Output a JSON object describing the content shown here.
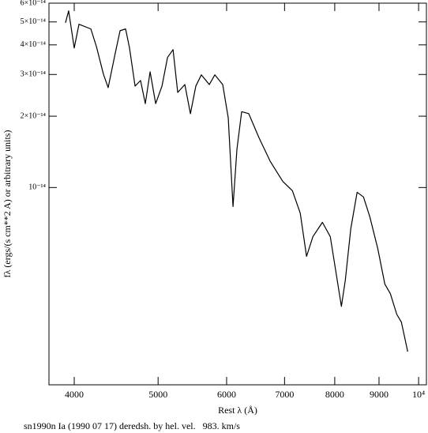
{
  "chart_data": {
    "type": "line",
    "title": "sn1990n Ia (1990 07 17) deredsh. by hel. vel.   983. km/s",
    "xlabel": "Rest λ (Å)",
    "ylabel": "fλ (ergs/(s cm**2 A) or arbitrary units)",
    "xscale": "log",
    "yscale": "log",
    "xlim": [
      3740,
      10210
    ],
    "ylim": [
      1.47e-15,
      6e-14
    ],
    "xticks": [
      4000,
      5000,
      6000,
      7000,
      8000,
      9000,
      {
        "value": 10000,
        "label": "10⁴"
      }
    ],
    "yticks": [
      {
        "value": 1e-14,
        "label": "10⁻¹⁴"
      },
      {
        "value": 2e-14,
        "label": "2×10⁻¹⁴"
      },
      {
        "value": 3e-14,
        "label": "3×10⁻¹⁴"
      },
      {
        "value": 4e-14,
        "label": "4×10⁻¹⁴"
      },
      {
        "value": 5e-14,
        "label": "5×10⁻¹⁴"
      },
      {
        "value": 6e-14,
        "label": "6×10⁻¹⁴"
      }
    ],
    "series": [
      {
        "color": "#000000",
        "x": [
          3908,
          3941,
          4000,
          4051,
          4181,
          4243,
          4323,
          4378,
          4462,
          4519,
          4586,
          4634,
          4703,
          4772,
          4833,
          4895,
          4968,
          5052,
          5127,
          5203,
          5268,
          5369,
          5449,
          5528,
          5610,
          5730,
          5815,
          5938,
          6026,
          6103,
          6167,
          6245,
          6364,
          6541,
          6738,
          6968,
          7147,
          7298,
          7422,
          7548,
          7742,
          7906,
          8040,
          8143,
          8228,
          8349,
          8491,
          8636,
          8783,
          8970,
          9141,
          9277,
          9434,
          9553,
          9714
        ],
        "values": [
          4.96e-14,
          5.57e-14,
          3.88e-14,
          4.89e-14,
          4.67e-14,
          3.94e-14,
          3.01e-14,
          2.64e-14,
          3.7e-14,
          4.59e-14,
          4.67e-14,
          3.88e-14,
          2.68e-14,
          2.83e-14,
          2.26e-14,
          3.08e-14,
          2.26e-14,
          2.68e-14,
          3.54e-14,
          3.82e-14,
          2.52e-14,
          2.72e-14,
          2.05e-14,
          2.68e-14,
          2.99e-14,
          2.72e-14,
          2.99e-14,
          2.72e-14,
          1.97e-14,
          8.31e-15,
          1.45e-14,
          2.09e-14,
          2.05e-14,
          1.62e-14,
          1.29e-14,
          1.06e-14,
          9.7e-15,
          7.8e-15,
          5.12e-15,
          6.2e-15,
          7.13e-15,
          6.2e-15,
          4.22e-15,
          3.15e-15,
          4.06e-15,
          6.7e-15,
          9.55e-15,
          9.12e-15,
          7.52e-15,
          5.53e-15,
          3.91e-15,
          3.56e-15,
          2.92e-15,
          2.7e-15,
          2.03e-15
        ]
      }
    ]
  }
}
